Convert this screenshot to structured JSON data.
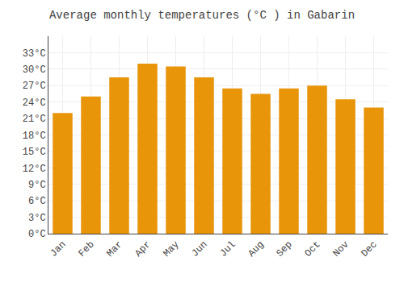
{
  "chart_data": {
    "type": "bar",
    "title": "Average monthly temperatures (°C ) in Gabarin",
    "categories": [
      "Jan",
      "Feb",
      "Mar",
      "Apr",
      "May",
      "Jun",
      "Jul",
      "Aug",
      "Sep",
      "Oct",
      "Nov",
      "Dec"
    ],
    "values": [
      22.0,
      25.0,
      28.5,
      31.0,
      30.5,
      28.5,
      26.5,
      25.5,
      26.5,
      27.0,
      24.5,
      23.0
    ],
    "color": "#E8950A",
    "ylim": [
      0,
      36
    ],
    "yticks": [
      {
        "value": 0,
        "label": "0°C"
      },
      {
        "value": 3,
        "label": "3°C"
      },
      {
        "value": 6,
        "label": "6°C"
      },
      {
        "value": 9,
        "label": "9°C"
      },
      {
        "value": 12,
        "label": "12°C"
      },
      {
        "value": 15,
        "label": "15°C"
      },
      {
        "value": 18,
        "label": "18°C"
      },
      {
        "value": 21,
        "label": "21°C"
      },
      {
        "value": 24,
        "label": "24°C"
      },
      {
        "value": 27,
        "label": "27°C"
      },
      {
        "value": 30,
        "label": "30°C"
      },
      {
        "value": 33,
        "label": "33°C"
      }
    ],
    "grid": true
  }
}
